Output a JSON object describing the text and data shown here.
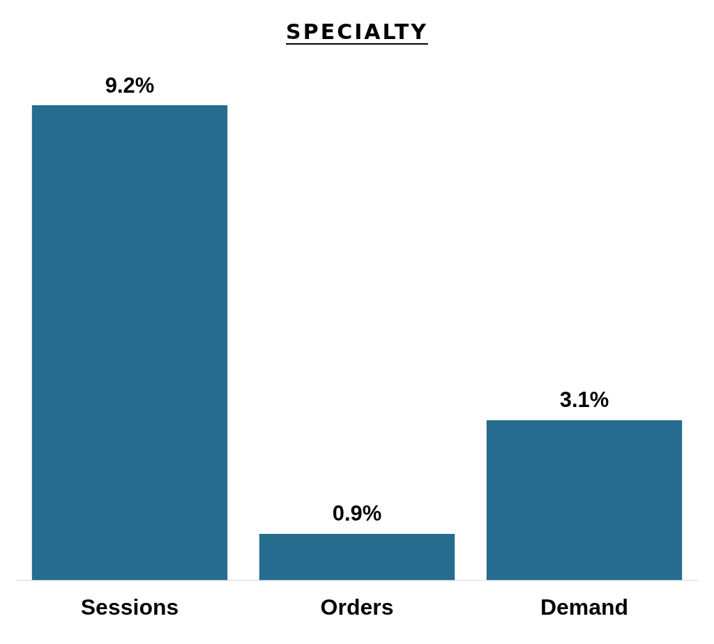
{
  "chart_data": {
    "type": "bar",
    "title": "SPECIALTY",
    "categories": [
      "Sessions",
      "Orders",
      "Demand"
    ],
    "values": [
      9.2,
      0.9,
      3.1
    ],
    "color": "#256c8f",
    "value_labels": [
      "9.2%",
      "0.9%",
      "3.1%"
    ],
    "tick_labels": "x"
  }
}
